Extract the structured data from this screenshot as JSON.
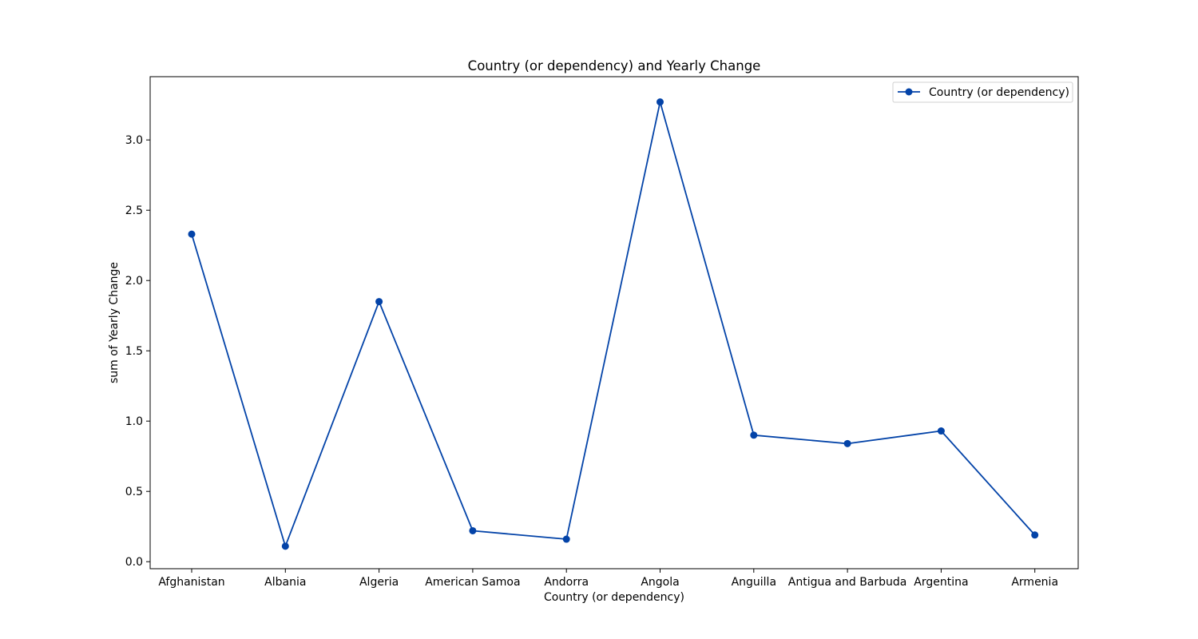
{
  "chart_data": {
    "type": "line",
    "title": "Country (or dependency) and Yearly Change",
    "xlabel": "Country (or dependency)",
    "ylabel": "sum of Yearly Change",
    "categories": [
      "Afghanistan",
      "Albania",
      "Algeria",
      "American Samoa",
      "Andorra",
      "Angola",
      "Anguilla",
      "Antigua and Barbuda",
      "Argentina",
      "Armenia"
    ],
    "series": [
      {
        "name": "Country (or dependency)",
        "values": [
          2.33,
          0.11,
          1.85,
          0.22,
          0.16,
          3.27,
          0.9,
          0.84,
          0.93,
          0.19
        ],
        "color": "#0343a8",
        "marker": "circle"
      }
    ],
    "ylim": [
      -0.05,
      3.45
    ],
    "yticks": [
      0.0,
      0.5,
      1.0,
      1.5,
      2.0,
      2.5,
      3.0
    ],
    "ytick_labels": [
      "0.0",
      "0.5",
      "1.0",
      "1.5",
      "2.0",
      "2.5",
      "3.0"
    ],
    "grid": false,
    "legend_position": "top-right"
  }
}
